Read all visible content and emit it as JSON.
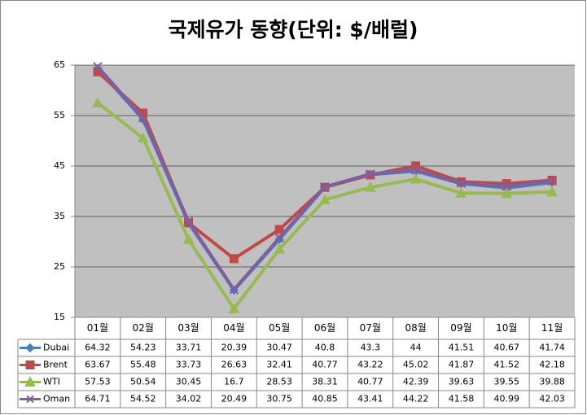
{
  "chart_data": {
    "type": "line",
    "title": "국제유가 동향(단위: $/배럴)",
    "categories": [
      "01월",
      "02월",
      "03월",
      "04월",
      "05월",
      "06월",
      "07월",
      "08월",
      "09월",
      "10월",
      "11월"
    ],
    "series": [
      {
        "name": "Dubai",
        "color": "#4a7ebb",
        "marker": "diamond",
        "values": [
          64.32,
          54.23,
          33.71,
          20.39,
          30.47,
          40.8,
          43.3,
          44,
          41.51,
          40.67,
          41.74
        ]
      },
      {
        "name": "Brent",
        "color": "#be4b48",
        "marker": "square",
        "values": [
          63.67,
          55.48,
          33.73,
          26.63,
          32.41,
          40.77,
          43.22,
          45.02,
          41.87,
          41.52,
          42.18
        ]
      },
      {
        "name": "WTI",
        "color": "#98b954",
        "marker": "triangle",
        "values": [
          57.53,
          50.54,
          30.45,
          16.7,
          28.53,
          38.31,
          40.77,
          42.39,
          39.63,
          39.55,
          39.88
        ]
      },
      {
        "name": "Oman",
        "color": "#7d60a0",
        "marker": "x",
        "values": [
          64.71,
          54.52,
          34.02,
          20.49,
          30.75,
          40.85,
          43.41,
          44.22,
          41.58,
          40.99,
          42.03
        ]
      }
    ],
    "ylim": [
      15,
      65
    ],
    "yticks": [
      15,
      25,
      35,
      45,
      55,
      65
    ],
    "grid": true,
    "data_table": true
  }
}
